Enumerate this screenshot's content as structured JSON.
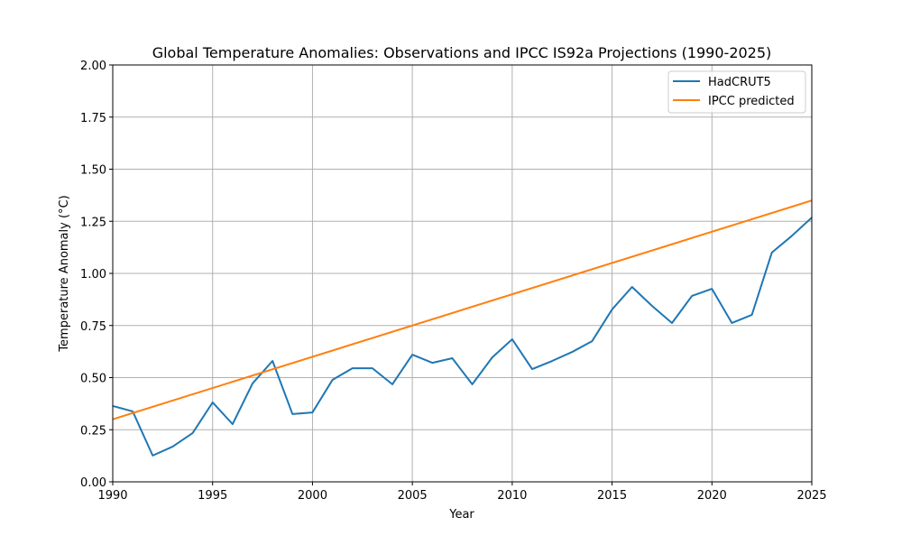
{
  "chart_data": {
    "type": "line",
    "title": "Global Temperature Anomalies: Observations and IPCC IS92a Projections (1990-2025)",
    "xlabel": "Year",
    "ylabel": "Temperature Anomaly (°C)",
    "xlim": [
      1990,
      2025
    ],
    "ylim": [
      0,
      2.0
    ],
    "xticks": [
      1990,
      1995,
      2000,
      2005,
      2010,
      2015,
      2020,
      2025
    ],
    "yticks": [
      "0.00",
      "0.25",
      "0.50",
      "0.75",
      "1.00",
      "1.25",
      "1.50",
      "1.75",
      "2.00"
    ],
    "grid": true,
    "legend_placement": "top-right",
    "series": [
      {
        "name": "HadCRUT5",
        "color": "#1f77b4",
        "x": [
          1990,
          1991,
          1992,
          1993,
          1994,
          1995,
          1996,
          1997,
          1998,
          1999,
          2000,
          2001,
          2002,
          2003,
          2004,
          2005,
          2006,
          2007,
          2008,
          2009,
          2010,
          2011,
          2012,
          2013,
          2014,
          2015,
          2016,
          2017,
          2018,
          2019,
          2020,
          2021,
          2022,
          2023,
          2024,
          2025
        ],
        "y": [
          0.364,
          0.338,
          0.126,
          0.169,
          0.234,
          0.381,
          0.277,
          0.472,
          0.58,
          0.325,
          0.333,
          0.489,
          0.545,
          0.545,
          0.468,
          0.61,
          0.571,
          0.593,
          0.468,
          0.597,
          0.684,
          0.541,
          0.58,
          0.623,
          0.675,
          0.827,
          0.935,
          0.844,
          0.762,
          0.892,
          0.926,
          0.762,
          0.801,
          1.1,
          1.18,
          1.268
        ]
      },
      {
        "name": "IPCC predicted",
        "color": "#ff7f0e",
        "x": [
          1990,
          2025
        ],
        "y": [
          0.3,
          1.35
        ]
      }
    ]
  }
}
